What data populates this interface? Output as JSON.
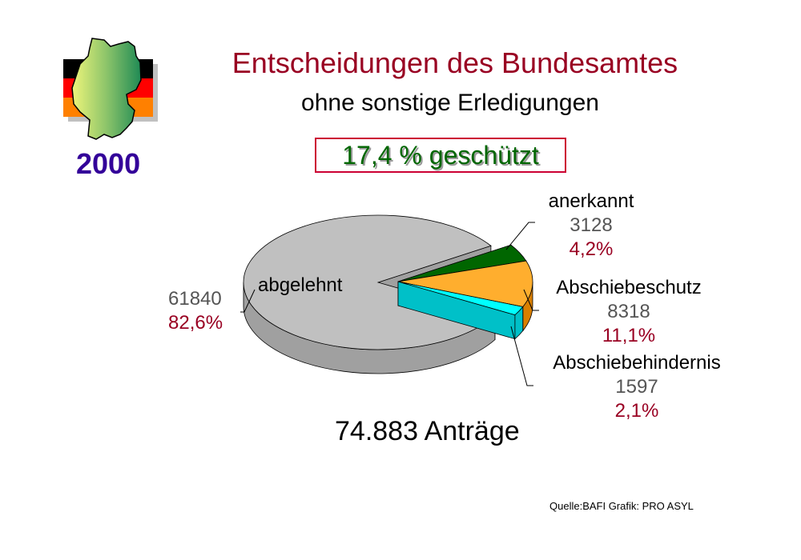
{
  "header": {
    "title": "Entscheidungen des Bundesamtes",
    "subtitle": "ohne sonstige Erledigungen",
    "protected_summary": "17,4 % geschützt",
    "year": "2000"
  },
  "chart_data": {
    "type": "pie",
    "title": "Entscheidungen des Bundesamtes",
    "total_label": "74.883 Anträge",
    "slices": [
      {
        "name": "abgelehnt",
        "value": 61840,
        "value_label": "61840",
        "percent": 82.6,
        "percent_label": "82,6%",
        "color": "#c0c0c0",
        "side_color": "#a0a0a0",
        "exploded": false
      },
      {
        "name": "anerkannt",
        "value": 3128,
        "value_label": "3128",
        "percent": 4.2,
        "percent_label": "4,2%",
        "color": "#006600",
        "side_color": "#004a00",
        "exploded": true
      },
      {
        "name": "Abschiebeschutz",
        "value": 8318,
        "value_label": "8318",
        "percent": 11.1,
        "percent_label": "11,1%",
        "color": "#ffae2e",
        "side_color": "#d97f00",
        "exploded": true
      },
      {
        "name": "Abschiebehindernis",
        "value": 1597,
        "value_label": "1597",
        "percent": 2.1,
        "percent_label": "2,1%",
        "color": "#00ffff",
        "side_color": "#00c0c8",
        "exploded": true
      }
    ]
  },
  "footer": {
    "source": "Quelle:BAFI Grafik: PRO ASYL"
  }
}
